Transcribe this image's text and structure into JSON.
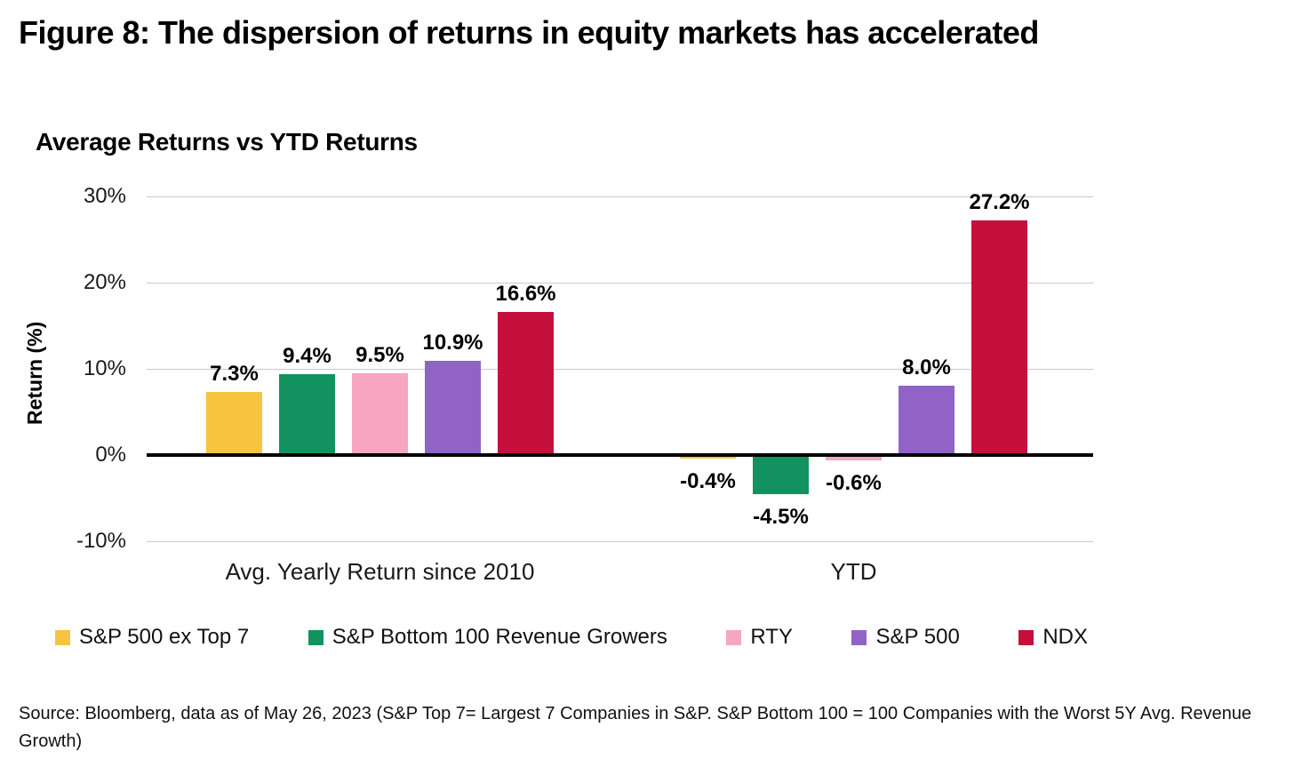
{
  "figure": {
    "title": "Figure 8: The dispersion of returns in equity markets has accelerated"
  },
  "chart_data": {
    "type": "bar",
    "title": "Average Returns vs YTD Returns",
    "ylabel": "Return (%)",
    "categories": [
      "Avg. Yearly Return since 2010",
      "YTD"
    ],
    "series": [
      {
        "name": "S&P 500 ex Top 7",
        "color": "#F7C440",
        "values": [
          7.3,
          -0.4
        ]
      },
      {
        "name": "S&P Bottom 100 Revenue Growers",
        "color": "#12925E",
        "values": [
          9.4,
          -4.5
        ]
      },
      {
        "name": "RTY",
        "color": "#F6A6C1",
        "values": [
          9.5,
          -0.6
        ]
      },
      {
        "name": "S&P 500",
        "color": "#9163C7",
        "values": [
          10.9,
          8.0
        ]
      },
      {
        "name": "NDX",
        "color": "#C50F3C",
        "values": [
          16.6,
          27.2
        ]
      }
    ],
    "value_labels": [
      [
        "7.3%",
        "9.4%",
        "9.5%",
        "10.9%",
        "16.6%"
      ],
      [
        "-0.4%",
        "-4.5%",
        "-0.6%",
        "8.0%",
        "27.2%"
      ]
    ],
    "ylim": [
      -10,
      30
    ],
    "ytick_values": [
      30,
      20,
      10,
      0,
      -10
    ],
    "yticks": [
      "30%",
      "20%",
      "10%",
      "0%",
      "-10%"
    ],
    "grid": "horizontal",
    "legend_position": "bottom"
  },
  "source": {
    "text": "Source: Bloomberg, data as of May 26, 2023 (S&P Top 7= Largest 7 Companies in S&P. S&P Bottom 100 = 100 Companies with the Worst 5Y Avg. Revenue Growth)"
  }
}
